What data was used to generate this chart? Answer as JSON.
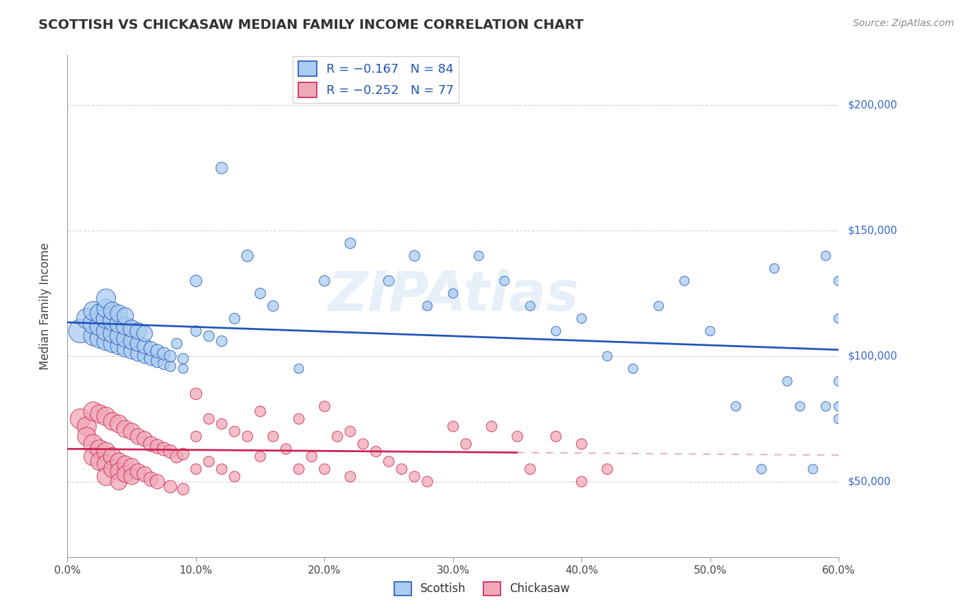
{
  "title": "SCOTTISH VS CHICKASAW MEDIAN FAMILY INCOME CORRELATION CHART",
  "source": "Source: ZipAtlas.com",
  "ylabel": "Median Family Income",
  "xlim": [
    0.0,
    0.6
  ],
  "ylim": [
    20000,
    220000
  ],
  "xtick_labels": [
    "0.0%",
    "",
    "",
    "",
    "",
    "",
    "",
    "",
    "",
    "",
    "10.0%",
    "",
    "",
    "",
    "",
    "",
    "",
    "",
    "",
    "",
    "20.0%",
    "",
    "",
    "",
    "",
    "",
    "",
    "",
    "",
    "",
    "30.0%",
    "",
    "",
    "",
    "",
    "",
    "",
    "",
    "",
    "",
    "40.0%",
    "",
    "",
    "",
    "",
    "",
    "",
    "",
    "",
    "",
    "50.0%",
    "",
    "",
    "",
    "",
    "",
    "",
    "",
    "",
    "",
    "60.0%"
  ],
  "xtick_vals": [
    0.0,
    0.01,
    0.02,
    0.03,
    0.04,
    0.05,
    0.06,
    0.07,
    0.08,
    0.09,
    0.1,
    0.11,
    0.12,
    0.13,
    0.14,
    0.15,
    0.16,
    0.17,
    0.18,
    0.19,
    0.2,
    0.21,
    0.22,
    0.23,
    0.24,
    0.25,
    0.26,
    0.27,
    0.28,
    0.29,
    0.3,
    0.31,
    0.32,
    0.33,
    0.34,
    0.35,
    0.36,
    0.37,
    0.38,
    0.39,
    0.4,
    0.41,
    0.42,
    0.43,
    0.44,
    0.45,
    0.46,
    0.47,
    0.48,
    0.49,
    0.5,
    0.51,
    0.52,
    0.53,
    0.54,
    0.55,
    0.56,
    0.57,
    0.58,
    0.59,
    0.6
  ],
  "ytick_vals": [
    50000,
    100000,
    150000,
    200000
  ],
  "ytick_labels": [
    "$50,000",
    "$100,000",
    "$150,000",
    "$200,000"
  ],
  "background_color": "#ffffff",
  "plot_bg_color": "#ffffff",
  "scottish_color": "#aaccf0",
  "chickasaw_color": "#f0a8b8",
  "scottish_line_color": "#2255bb",
  "chickasaw_line_color": "#cc2255",
  "chickasaw_dash_color": "#e8b0c0",
  "watermark_text": "ZIPAtlas",
  "legend_r_scottish": "R = -0.167",
  "legend_n_scottish": "N = 84",
  "legend_r_chickasaw": "R = -0.252",
  "legend_n_chickasaw": "N = 77",
  "scottish_x": [
    0.01,
    0.015,
    0.02,
    0.02,
    0.02,
    0.025,
    0.025,
    0.025,
    0.03,
    0.03,
    0.03,
    0.03,
    0.03,
    0.035,
    0.035,
    0.035,
    0.035,
    0.04,
    0.04,
    0.04,
    0.04,
    0.045,
    0.045,
    0.045,
    0.045,
    0.05,
    0.05,
    0.05,
    0.055,
    0.055,
    0.055,
    0.06,
    0.06,
    0.06,
    0.065,
    0.065,
    0.07,
    0.07,
    0.075,
    0.075,
    0.08,
    0.08,
    0.085,
    0.09,
    0.09,
    0.1,
    0.1,
    0.11,
    0.12,
    0.12,
    0.13,
    0.14,
    0.15,
    0.16,
    0.18,
    0.2,
    0.22,
    0.25,
    0.27,
    0.28,
    0.3,
    0.32,
    0.34,
    0.36,
    0.38,
    0.4,
    0.42,
    0.44,
    0.46,
    0.48,
    0.5,
    0.52,
    0.54,
    0.55,
    0.56,
    0.57,
    0.58,
    0.59,
    0.59,
    0.6,
    0.6,
    0.6,
    0.6,
    0.6
  ],
  "scottish_y": [
    110000,
    115000,
    108000,
    113000,
    118000,
    107000,
    112000,
    117000,
    106000,
    110000,
    115000,
    119000,
    123000,
    105000,
    109000,
    114000,
    118000,
    104000,
    108000,
    113000,
    117000,
    103000,
    107000,
    112000,
    116000,
    102000,
    106000,
    111000,
    101000,
    105000,
    110000,
    100000,
    104000,
    109000,
    99000,
    103000,
    98000,
    102000,
    97000,
    101000,
    96000,
    100000,
    105000,
    95000,
    99000,
    110000,
    130000,
    108000,
    106000,
    175000,
    115000,
    140000,
    125000,
    120000,
    95000,
    130000,
    145000,
    130000,
    140000,
    120000,
    125000,
    140000,
    130000,
    120000,
    110000,
    115000,
    100000,
    95000,
    120000,
    130000,
    110000,
    80000,
    55000,
    135000,
    90000,
    80000,
    55000,
    140000,
    80000,
    130000,
    115000,
    90000,
    80000,
    75000
  ],
  "chickasaw_x": [
    0.01,
    0.015,
    0.015,
    0.02,
    0.02,
    0.02,
    0.025,
    0.025,
    0.025,
    0.03,
    0.03,
    0.03,
    0.03,
    0.035,
    0.035,
    0.035,
    0.04,
    0.04,
    0.04,
    0.04,
    0.045,
    0.045,
    0.045,
    0.05,
    0.05,
    0.05,
    0.055,
    0.055,
    0.06,
    0.06,
    0.065,
    0.065,
    0.07,
    0.07,
    0.075,
    0.08,
    0.08,
    0.085,
    0.09,
    0.09,
    0.1,
    0.1,
    0.1,
    0.11,
    0.11,
    0.12,
    0.12,
    0.13,
    0.13,
    0.14,
    0.15,
    0.15,
    0.16,
    0.17,
    0.18,
    0.18,
    0.19,
    0.2,
    0.2,
    0.21,
    0.22,
    0.22,
    0.23,
    0.24,
    0.25,
    0.26,
    0.27,
    0.28,
    0.3,
    0.31,
    0.33,
    0.35,
    0.36,
    0.38,
    0.4,
    0.4,
    0.42
  ],
  "chickasaw_y": [
    75000,
    72000,
    68000,
    78000,
    65000,
    60000,
    77000,
    63000,
    58000,
    76000,
    62000,
    57000,
    52000,
    74000,
    60000,
    55000,
    73000,
    58000,
    54000,
    50000,
    71000,
    57000,
    53000,
    70000,
    56000,
    52000,
    68000,
    54000,
    67000,
    53000,
    65000,
    51000,
    64000,
    50000,
    63000,
    62000,
    48000,
    60000,
    61000,
    47000,
    85000,
    68000,
    55000,
    75000,
    58000,
    73000,
    55000,
    70000,
    52000,
    68000,
    78000,
    60000,
    68000,
    63000,
    75000,
    55000,
    60000,
    80000,
    55000,
    68000,
    70000,
    52000,
    65000,
    62000,
    58000,
    55000,
    52000,
    50000,
    72000,
    65000,
    72000,
    68000,
    55000,
    68000,
    65000,
    50000,
    55000
  ],
  "scottish_sizes": [
    120,
    90,
    80,
    90,
    80,
    80,
    85,
    80,
    75,
    80,
    85,
    75,
    80,
    70,
    75,
    80,
    70,
    65,
    70,
    75,
    65,
    60,
    65,
    70,
    60,
    55,
    60,
    65,
    50,
    55,
    60,
    45,
    50,
    55,
    40,
    45,
    35,
    40,
    30,
    35,
    25,
    30,
    25,
    20,
    25,
    25,
    30,
    25,
    25,
    30,
    25,
    30,
    25,
    25,
    20,
    25,
    25,
    25,
    25,
    20,
    20,
    20,
    20,
    20,
    20,
    20,
    20,
    20,
    20,
    20,
    20,
    20,
    20,
    20,
    20,
    20,
    20,
    20,
    20,
    20,
    20,
    20,
    20,
    20
  ],
  "chickasaw_sizes": [
    90,
    80,
    75,
    80,
    80,
    75,
    75,
    75,
    70,
    75,
    75,
    70,
    70,
    70,
    70,
    65,
    70,
    65,
    65,
    60,
    65,
    60,
    60,
    60,
    60,
    55,
    55,
    55,
    50,
    50,
    50,
    45,
    45,
    45,
    40,
    40,
    35,
    35,
    30,
    30,
    30,
    25,
    25,
    25,
    25,
    25,
    25,
    25,
    25,
    25,
    25,
    25,
    25,
    25,
    25,
    25,
    25,
    25,
    25,
    25,
    25,
    25,
    25,
    25,
    25,
    25,
    25,
    25,
    25,
    25,
    25,
    25,
    25,
    25,
    25,
    25,
    25
  ]
}
